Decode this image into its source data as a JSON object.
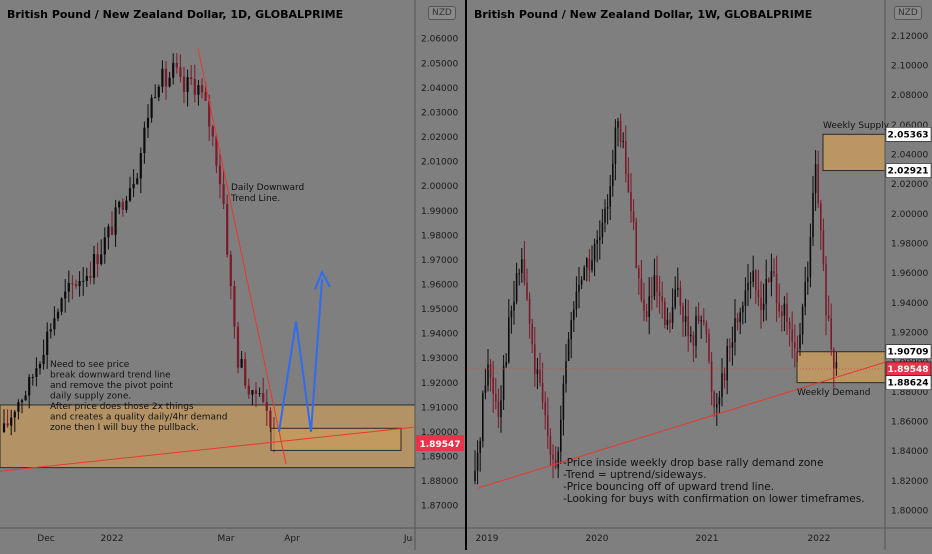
{
  "charts": [
    {
      "title": "British Pound / New Zealand Dollar, 1D, GLOBALPRIME",
      "currency": "NZD",
      "price_label": "1.89547",
      "annotations": {
        "trend_line": [
          "Daily Downward",
          "Trend Line."
        ],
        "note": [
          "Need to see price",
          "break downward trend line",
          "and remove the pivot point",
          "daily supply zone.",
          "After price does those 2x things",
          "and creates a quality daily/4hr demand",
          "zone then I will buy the pullback."
        ]
      }
    },
    {
      "title": "British Pound / New Zealand Dollar, 1W, GLOBALPRIME",
      "currency": "NZD",
      "price_labels": {
        "supply_top": "2.05363",
        "supply_bottom": "2.02921",
        "demand_top": "1.90709",
        "current": "1.89548",
        "demand_bottom": "1.88624"
      },
      "annotations": {
        "supply": "Weekly Supply",
        "demand": "Weekly Demand",
        "note": [
          "-Price inside weekly drop base rally demand zone",
          "-Trend = uptrend/sideways.",
          "-Price bouncing off of upward trend line.",
          "-Looking for buys with confirmation on lower timeframes."
        ]
      }
    }
  ],
  "colors": {
    "background": "#7f7f7f",
    "candle": "#000000",
    "zone_fill": "#c49a5e",
    "trend_line": "#e8382f",
    "arrow": "#2f6cf0",
    "price_tag": "#e8334a"
  },
  "chart_data": [
    {
      "type": "candlestick",
      "title": "British Pound / New Zealand Dollar, 1D, GLOBALPRIME",
      "x_ticks": [
        "Dec",
        "2022",
        "Mar",
        "Apr",
        "Ju"
      ],
      "y_ticks": [
        "2.06000",
        "2.05000",
        "2.04000",
        "2.03000",
        "2.02000",
        "2.01000",
        "2.00000",
        "1.99000",
        "1.98000",
        "1.97000",
        "1.96000",
        "1.95000",
        "1.94000",
        "1.93000",
        "1.92000",
        "1.91000",
        "1.90000",
        "1.89000",
        "1.88000",
        "1.87000"
      ],
      "ylim": [
        1.865,
        2.066
      ],
      "close_path": [
        {
          "x": 0.0,
          "y": 1.9
        },
        {
          "x": 0.03,
          "y": 1.912
        },
        {
          "x": 0.06,
          "y": 1.918
        },
        {
          "x": 0.09,
          "y": 1.932
        },
        {
          "x": 0.12,
          "y": 1.946
        },
        {
          "x": 0.15,
          "y": 1.955
        },
        {
          "x": 0.18,
          "y": 1.962
        },
        {
          "x": 0.21,
          "y": 1.966
        },
        {
          "x": 0.24,
          "y": 1.975
        },
        {
          "x": 0.27,
          "y": 1.985
        },
        {
          "x": 0.3,
          "y": 1.998
        },
        {
          "x": 0.33,
          "y": 2.008
        },
        {
          "x": 0.355,
          "y": 2.03
        },
        {
          "x": 0.38,
          "y": 2.045
        },
        {
          "x": 0.4,
          "y": 2.042
        },
        {
          "x": 0.42,
          "y": 2.048
        },
        {
          "x": 0.44,
          "y": 2.038
        },
        {
          "x": 0.46,
          "y": 2.043
        },
        {
          "x": 0.48,
          "y": 2.04
        },
        {
          "x": 0.5,
          "y": 2.03
        },
        {
          "x": 0.52,
          "y": 2.015
        },
        {
          "x": 0.54,
          "y": 1.995
        },
        {
          "x": 0.56,
          "y": 1.955
        },
        {
          "x": 0.575,
          "y": 1.93
        },
        {
          "x": 0.59,
          "y": 1.925
        },
        {
          "x": 0.61,
          "y": 1.912
        },
        {
          "x": 0.63,
          "y": 1.92
        },
        {
          "x": 0.65,
          "y": 1.905
        },
        {
          "x": 0.67,
          "y": 1.895
        }
      ],
      "zones": [
        {
          "name": "supply zone",
          "y0": 1.8855,
          "y1": 1.911
        },
        {
          "name": "demand zone",
          "y0": 1.8925,
          "y1": 1.9015
        }
      ]
    },
    {
      "type": "candlestick",
      "title": "British Pound / New Zealand Dollar, 1W, GLOBALPRIME",
      "x_ticks": [
        "2019",
        "2020",
        "2021",
        "2022"
      ],
      "y_ticks": [
        "2.12000",
        "2.10000",
        "2.08000",
        "2.06000",
        "2.04000",
        "2.02000",
        "2.00000",
        "1.98000",
        "1.96000",
        "1.94000",
        "1.92000",
        "1.90000",
        "1.88000",
        "1.86000",
        "1.84000",
        "1.82000",
        "1.80000"
      ],
      "ylim": [
        1.795,
        2.128
      ],
      "close_path": [
        {
          "x": 0.0,
          "y": 1.82
        },
        {
          "x": 0.03,
          "y": 1.9
        },
        {
          "x": 0.06,
          "y": 1.87
        },
        {
          "x": 0.09,
          "y": 1.93
        },
        {
          "x": 0.12,
          "y": 1.97
        },
        {
          "x": 0.15,
          "y": 1.9
        },
        {
          "x": 0.18,
          "y": 1.86
        },
        {
          "x": 0.21,
          "y": 1.83
        },
        {
          "x": 0.24,
          "y": 1.92
        },
        {
          "x": 0.27,
          "y": 1.96
        },
        {
          "x": 0.3,
          "y": 1.97
        },
        {
          "x": 0.33,
          "y": 1.99
        },
        {
          "x": 0.36,
          "y": 2.06
        },
        {
          "x": 0.38,
          "y": 2.04
        },
        {
          "x": 0.4,
          "y": 2.0
        },
        {
          "x": 0.43,
          "y": 1.93
        },
        {
          "x": 0.46,
          "y": 1.95
        },
        {
          "x": 0.49,
          "y": 1.92
        },
        {
          "x": 0.52,
          "y": 1.95
        },
        {
          "x": 0.55,
          "y": 1.91
        },
        {
          "x": 0.58,
          "y": 1.94
        },
        {
          "x": 0.61,
          "y": 1.87
        },
        {
          "x": 0.64,
          "y": 1.9
        },
        {
          "x": 0.67,
          "y": 1.93
        },
        {
          "x": 0.7,
          "y": 1.96
        },
        {
          "x": 0.73,
          "y": 1.94
        },
        {
          "x": 0.76,
          "y": 1.96
        },
        {
          "x": 0.79,
          "y": 1.93
        },
        {
          "x": 0.82,
          "y": 1.9
        },
        {
          "x": 0.85,
          "y": 1.96
        },
        {
          "x": 0.87,
          "y": 2.03
        },
        {
          "x": 0.89,
          "y": 1.96
        },
        {
          "x": 0.91,
          "y": 1.9
        },
        {
          "x": 0.93,
          "y": 1.895
        }
      ],
      "zones": [
        {
          "name": "Weekly Supply",
          "y0": 2.02921,
          "y1": 2.05363
        },
        {
          "name": "Weekly Demand",
          "y0": 1.88624,
          "y1": 1.90709
        }
      ]
    }
  ]
}
